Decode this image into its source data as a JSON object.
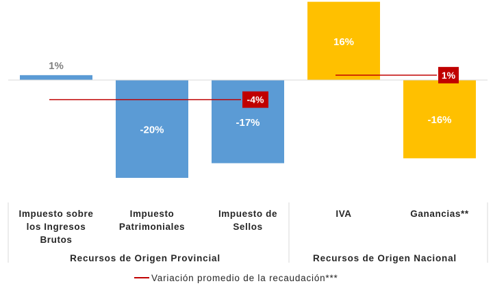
{
  "chart_data": {
    "type": "bar",
    "categories": [
      [
        "Impuesto sobre",
        "los Ingresos",
        "Brutos"
      ],
      [
        "Impuesto",
        "Patrimoniales"
      ],
      [
        "Impuesto de",
        "Sellos"
      ],
      [
        "IVA"
      ],
      [
        "Ganancias**"
      ]
    ],
    "groups": [
      {
        "name": "Recursos de Origen Provincial",
        "categories": [
          0,
          1,
          2
        ],
        "color": "#5B9BD5"
      },
      {
        "name": "Recursos de Origen Nacional",
        "categories": [
          3,
          4
        ],
        "color": "#FFC000"
      }
    ],
    "values": [
      1,
      -20,
      -17,
      16,
      -16
    ],
    "value_labels": [
      "1%",
      "-20%",
      "-17%",
      "16%",
      "-16%"
    ],
    "average_series": {
      "name": "Variación promedio de la recaudación***",
      "color": "#C00000",
      "lines": [
        {
          "group": 0,
          "value": -4,
          "label": "-4%"
        },
        {
          "group": 1,
          "value": 1,
          "label": "1%"
        }
      ]
    },
    "legend_position": "bottom",
    "grid": false
  }
}
